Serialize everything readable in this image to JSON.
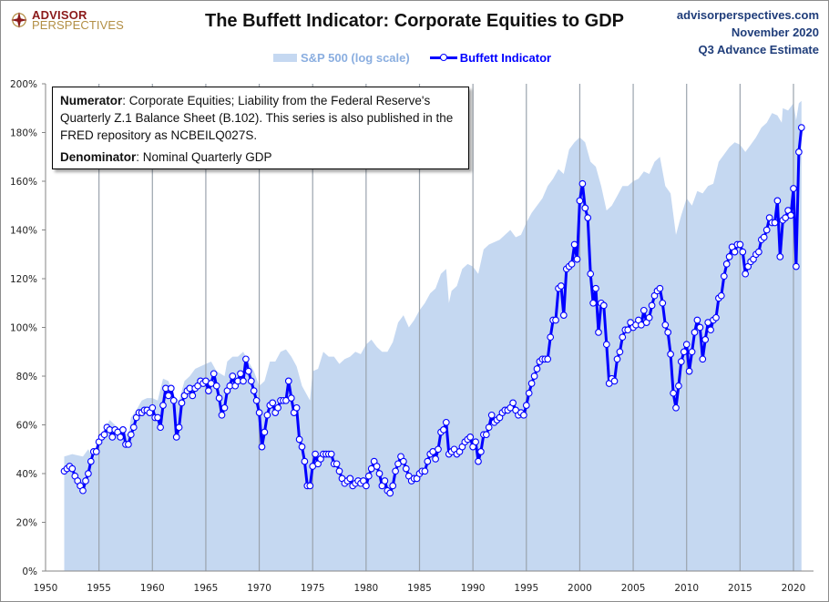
{
  "brand": {
    "logo_top": "ADVISOR",
    "logo_bottom": "PERSPECTIVES",
    "logo_icon": "compass-star-icon",
    "colors": {
      "logo_red": "#8b1a1a",
      "logo_gold": "#b38f45"
    }
  },
  "header": {
    "title": "The Buffett Indicator: Corporate Equities to GDP",
    "meta_lines": [
      "advisorperspectives.com",
      "November 2020",
      "Q3 Advance Estimate"
    ]
  },
  "legend": {
    "items": [
      {
        "label": "S&P 500 (log scale)",
        "type": "area",
        "color": "#c5d8f1"
      },
      {
        "label": "Buffett Indicator",
        "type": "line-marker",
        "color": "#0000ff"
      }
    ]
  },
  "note": {
    "numerator_label": "Numerator",
    "numerator_text": ": Corporate Equities; Liability from the Federal Reserve's Quarterly Z.1 Balance Sheet (B.102). This series is also published in the FRED repository  as NCBEILQ027S.",
    "denominator_label": "Denominator",
    "denominator_text": ": Nominal Quarterly GDP"
  },
  "chart_data": {
    "type": "line",
    "title": "The Buffett Indicator: Corporate Equities to GDP",
    "xlabel": "",
    "ylabel": "",
    "xlim": [
      1950,
      2022
    ],
    "ylim": [
      0,
      200
    ],
    "x_ticks": [
      1950,
      1955,
      1960,
      1965,
      1970,
      1975,
      1980,
      1985,
      1990,
      1995,
      2000,
      2005,
      2010,
      2015,
      2020
    ],
    "y_ticks": [
      0,
      20,
      40,
      60,
      80,
      100,
      120,
      140,
      160,
      180,
      200
    ],
    "y_tick_labels": [
      "0%",
      "20%",
      "40%",
      "60%",
      "80%",
      "100%",
      "120%",
      "140%",
      "160%",
      "180%",
      "200%"
    ],
    "grid": "vertical",
    "legend_position": "top-center",
    "series": [
      {
        "name": "S&P 500 (log scale)",
        "type": "area",
        "color": "#c5d8f1",
        "note": "plotted on a log scale, shown in chart axis units",
        "x": [
          1951.75,
          1952.5,
          1953.5,
          1954,
          1954.5,
          1955,
          1955.5,
          1956,
          1956.5,
          1957,
          1957.75,
          1958,
          1958.5,
          1959,
          1959.5,
          1960,
          1960.5,
          1961,
          1961.5,
          1962,
          1962.5,
          1963,
          1963.5,
          1964,
          1964.5,
          1965,
          1965.5,
          1966,
          1966.75,
          1967,
          1967.5,
          1968,
          1968.5,
          1969,
          1969.5,
          1970,
          1970.5,
          1971,
          1971.5,
          1972,
          1972.5,
          1973,
          1973.5,
          1974,
          1974.75,
          1975,
          1975.5,
          1976,
          1976.5,
          1977,
          1977.5,
          1978,
          1978.5,
          1979,
          1979.5,
          1980,
          1980.5,
          1981,
          1981.5,
          1982,
          1982.5,
          1983,
          1983.5,
          1984,
          1984.5,
          1985,
          1985.5,
          1986,
          1986.5,
          1987,
          1987.5,
          1987.75,
          1988,
          1988.5,
          1989,
          1989.5,
          1990,
          1990.5,
          1991,
          1991.5,
          1992,
          1992.5,
          1993,
          1993.5,
          1994,
          1994.5,
          1995,
          1995.5,
          1996,
          1996.5,
          1997,
          1997.5,
          1998,
          1998.5,
          1999,
          1999.5,
          2000,
          2000.5,
          2001,
          2001.5,
          2002,
          2002.5,
          2003,
          2003.5,
          2004,
          2004.5,
          2005,
          2005.5,
          2006,
          2006.5,
          2007,
          2007.5,
          2008,
          2008.5,
          2009,
          2009.5,
          2010,
          2010.5,
          2011,
          2011.5,
          2012,
          2012.5,
          2013,
          2013.5,
          2014,
          2014.5,
          2015,
          2015.5,
          2016,
          2016.5,
          2017,
          2017.5,
          2018,
          2018.5,
          2018.9,
          2019,
          2019.5,
          2020,
          2020.25,
          2020.5,
          2020.75
        ],
        "values": [
          47,
          48,
          47,
          50,
          46,
          55,
          58,
          62,
          60,
          58,
          56,
          63,
          66,
          70,
          71,
          71,
          70,
          79,
          78,
          72,
          70,
          78,
          80,
          83,
          84,
          85,
          86,
          82,
          80,
          86,
          88,
          88,
          90,
          86,
          82,
          76,
          78,
          86,
          86,
          90,
          91,
          88,
          84,
          76,
          70,
          82,
          83,
          90,
          88,
          88,
          85,
          87,
          88,
          90,
          89,
          93,
          95,
          92,
          90,
          90,
          94,
          102,
          105,
          100,
          103,
          107,
          110,
          114,
          116,
          122,
          124,
          110,
          115,
          117,
          124,
          126,
          125,
          122,
          132,
          134,
          135,
          136,
          138,
          140,
          137,
          138,
          143,
          147,
          150,
          153,
          158,
          161,
          165,
          163,
          173,
          176,
          178,
          176,
          168,
          166,
          158,
          148,
          150,
          154,
          158,
          158,
          160,
          161,
          164,
          163,
          168,
          170,
          158,
          155,
          138,
          146,
          153,
          150,
          156,
          155,
          158,
          159,
          168,
          171,
          174,
          176,
          175,
          172,
          175,
          178,
          182,
          184,
          188,
          187,
          184,
          190,
          189,
          192,
          185,
          192,
          193
        ]
      },
      {
        "name": "Buffett Indicator",
        "type": "line",
        "color": "#0000ff",
        "marker": "circle-hollow",
        "x": [
          1951.75,
          1952,
          1952.25,
          1952.5,
          1952.75,
          1953,
          1953.25,
          1953.5,
          1953.75,
          1954,
          1954.25,
          1954.5,
          1954.75,
          1955,
          1955.25,
          1955.5,
          1955.75,
          1956,
          1956.25,
          1956.5,
          1956.75,
          1957,
          1957.25,
          1957.5,
          1957.75,
          1958,
          1958.25,
          1958.5,
          1958.75,
          1959,
          1959.25,
          1959.5,
          1959.75,
          1960,
          1960.25,
          1960.5,
          1960.75,
          1961,
          1961.25,
          1961.5,
          1961.75,
          1962,
          1962.25,
          1962.5,
          1962.75,
          1963,
          1963.25,
          1963.5,
          1963.75,
          1964,
          1964.25,
          1964.5,
          1964.75,
          1965,
          1965.25,
          1965.5,
          1965.75,
          1966,
          1966.25,
          1966.5,
          1966.75,
          1967,
          1967.25,
          1967.5,
          1967.75,
          1968,
          1968.25,
          1968.5,
          1968.75,
          1969,
          1969.25,
          1969.5,
          1969.75,
          1970,
          1970.25,
          1970.5,
          1970.75,
          1971,
          1971.25,
          1971.5,
          1971.75,
          1972,
          1972.25,
          1972.5,
          1972.75,
          1973,
          1973.25,
          1973.5,
          1973.75,
          1974,
          1974.25,
          1974.5,
          1974.75,
          1975,
          1975.25,
          1975.5,
          1975.75,
          1976,
          1976.25,
          1976.5,
          1976.75,
          1977,
          1977.25,
          1977.5,
          1977.75,
          1978,
          1978.25,
          1978.5,
          1978.75,
          1979,
          1979.25,
          1979.5,
          1979.75,
          1980,
          1980.25,
          1980.5,
          1980.75,
          1981,
          1981.25,
          1981.5,
          1981.75,
          1982,
          1982.25,
          1982.5,
          1982.75,
          1983,
          1983.25,
          1983.5,
          1983.75,
          1984,
          1984.25,
          1984.5,
          1984.75,
          1985,
          1985.25,
          1985.5,
          1985.75,
          1986,
          1986.25,
          1986.5,
          1986.75,
          1987,
          1987.25,
          1987.5,
          1987.75,
          1988,
          1988.25,
          1988.5,
          1988.75,
          1989,
          1989.25,
          1989.5,
          1989.75,
          1990,
          1990.25,
          1990.5,
          1990.75,
          1991,
          1991.25,
          1991.5,
          1991.75,
          1992,
          1992.25,
          1992.5,
          1992.75,
          1993,
          1993.25,
          1993.5,
          1993.75,
          1994,
          1994.25,
          1994.5,
          1994.75,
          1995,
          1995.25,
          1995.5,
          1995.75,
          1996,
          1996.25,
          1996.5,
          1996.75,
          1997,
          1997.25,
          1997.5,
          1997.75,
          1998,
          1998.25,
          1998.5,
          1998.75,
          1999,
          1999.25,
          1999.5,
          1999.75,
          2000,
          2000.25,
          2000.5,
          2000.75,
          2001,
          2001.25,
          2001.5,
          2001.75,
          2002,
          2002.25,
          2002.5,
          2002.75,
          2003,
          2003.25,
          2003.5,
          2003.75,
          2004,
          2004.25,
          2004.5,
          2004.75,
          2005,
          2005.25,
          2005.5,
          2005.75,
          2006,
          2006.25,
          2006.5,
          2006.75,
          2007,
          2007.25,
          2007.5,
          2007.75,
          2008,
          2008.25,
          2008.5,
          2008.75,
          2009,
          2009.25,
          2009.5,
          2009.75,
          2010,
          2010.25,
          2010.5,
          2010.75,
          2011,
          2011.25,
          2011.5,
          2011.75,
          2012,
          2012.25,
          2012.5,
          2012.75,
          2013,
          2013.25,
          2013.5,
          2013.75,
          2014,
          2014.25,
          2014.5,
          2014.75,
          2015,
          2015.25,
          2015.5,
          2015.75,
          2016,
          2016.25,
          2016.5,
          2016.75,
          2017,
          2017.25,
          2017.5,
          2017.75,
          2018,
          2018.25,
          2018.5,
          2018.75,
          2019,
          2019.25,
          2019.5,
          2019.75,
          2020,
          2020.25,
          2020.5,
          2020.75
        ],
        "values": [
          41,
          42,
          43,
          42,
          39,
          37,
          35,
          33,
          37,
          40,
          45,
          49,
          49,
          53,
          55,
          56,
          59,
          58,
          55,
          58,
          57,
          55,
          58,
          52,
          52,
          56,
          59,
          63,
          65,
          65,
          66,
          66,
          65,
          67,
          63,
          63,
          59,
          68,
          75,
          72,
          75,
          70,
          55,
          59,
          69,
          72,
          74,
          75,
          72,
          75,
          76,
          78,
          77,
          78,
          74,
          77,
          81,
          76,
          71,
          64,
          67,
          74,
          76,
          80,
          76,
          78,
          81,
          78,
          87,
          82,
          78,
          74,
          70,
          65,
          51,
          57,
          64,
          68,
          69,
          65,
          67,
          70,
          70,
          70,
          78,
          71,
          65,
          67,
          54,
          51,
          45,
          35,
          35,
          43,
          48,
          44,
          46,
          48,
          48,
          48,
          48,
          44,
          44,
          41,
          38,
          36,
          37,
          38,
          35,
          36,
          37,
          36,
          37,
          35,
          39,
          42,
          45,
          43,
          40,
          35,
          37,
          33,
          32,
          35,
          41,
          44,
          47,
          45,
          42,
          39,
          37,
          38,
          38,
          40,
          41,
          41,
          45,
          48,
          49,
          46,
          50,
          57,
          58,
          61,
          48,
          49,
          50,
          48,
          49,
          51,
          53,
          54,
          55,
          51,
          53,
          45,
          49,
          56,
          56,
          59,
          64,
          61,
          62,
          63,
          65,
          66,
          66,
          67,
          69,
          66,
          64,
          65,
          64,
          68,
          73,
          77,
          80,
          83,
          86,
          87,
          87,
          87,
          96,
          103,
          103,
          116,
          117,
          105,
          124,
          125,
          126,
          134,
          128,
          152,
          159,
          149,
          145,
          122,
          110,
          116,
          98,
          110,
          109,
          93,
          77,
          79,
          78,
          87,
          90,
          96,
          99,
          99,
          102,
          100,
          101,
          103,
          101,
          107,
          102,
          104,
          109,
          113,
          115,
          116,
          110,
          101,
          98,
          89,
          73,
          67,
          76,
          86,
          90,
          93,
          82,
          90,
          98,
          103,
          100,
          87,
          95,
          102,
          99,
          103,
          104,
          112,
          113,
          121,
          126,
          129,
          133,
          131,
          134,
          134,
          131,
          122,
          125,
          127,
          128,
          130,
          131,
          136,
          137,
          140,
          145,
          143,
          143,
          152,
          129,
          144,
          145,
          148,
          146,
          157,
          125,
          172,
          182
        ]
      }
    ]
  }
}
